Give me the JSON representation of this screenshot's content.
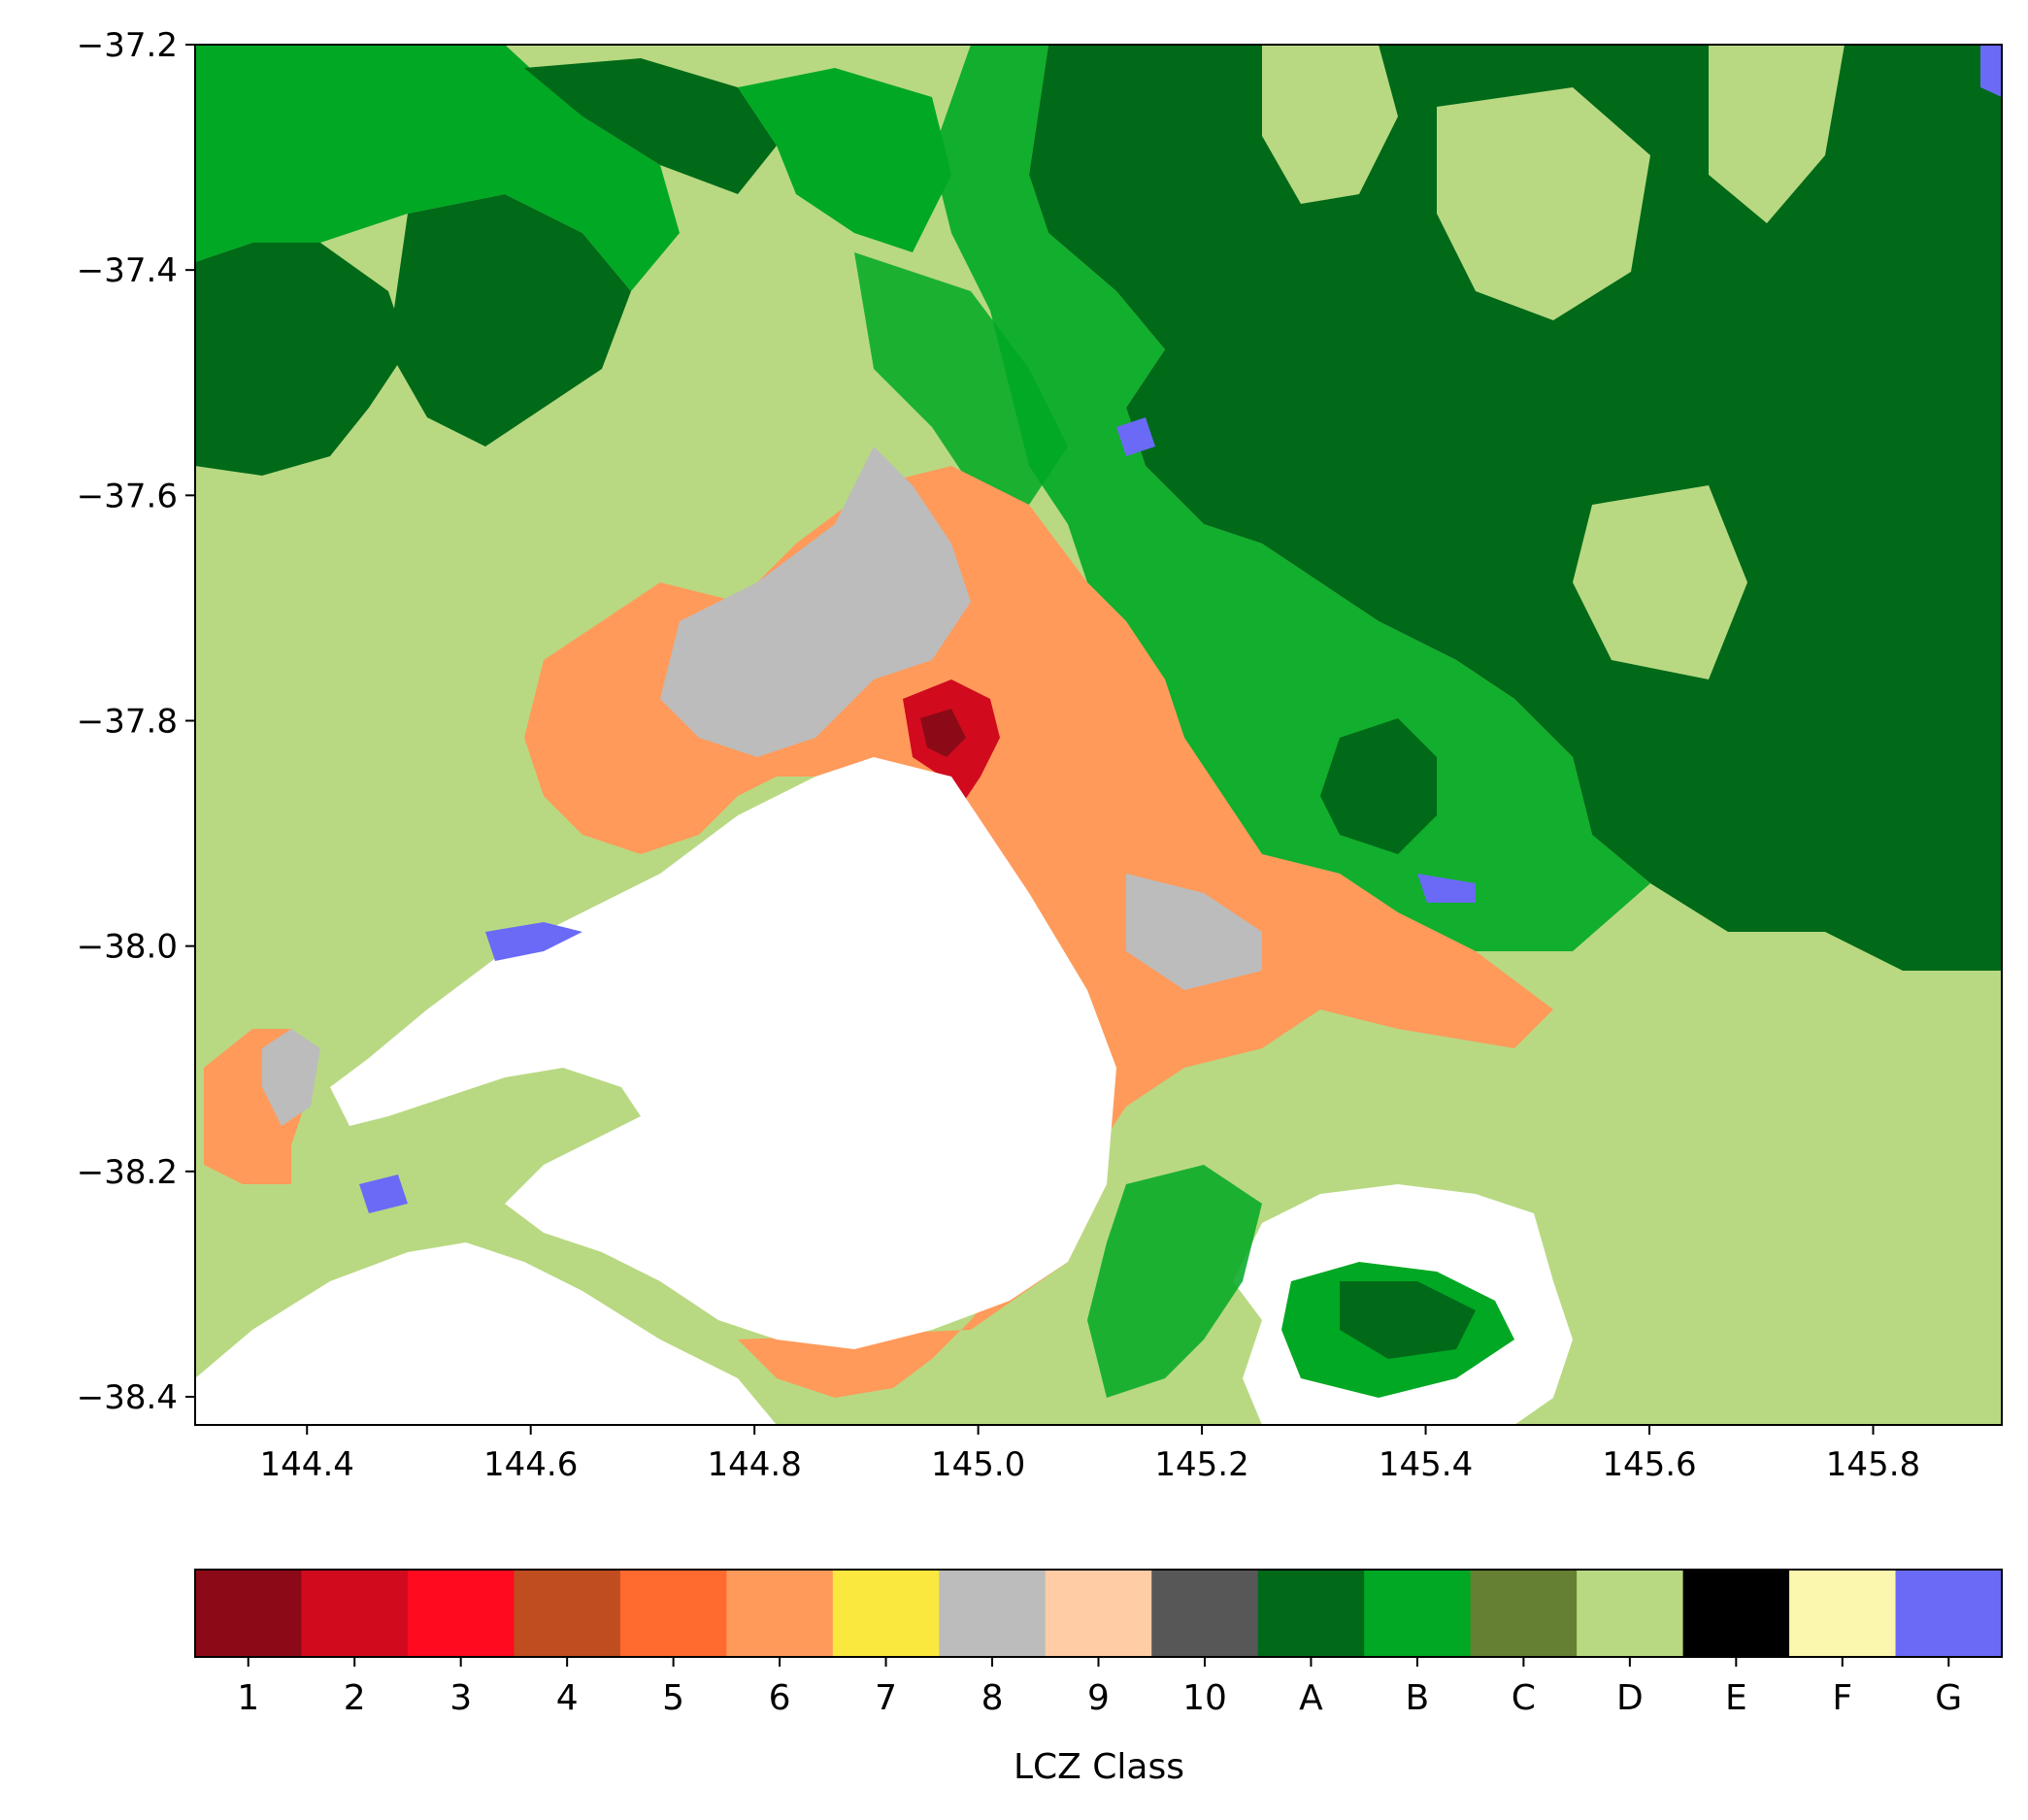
{
  "chart_data": {
    "type": "heatmap",
    "title": "",
    "xlabel": "",
    "ylabel": "",
    "xlim": [
      144.3,
      145.915
    ],
    "ylim": [
      -38.425,
      -37.2
    ],
    "x_ticks": [
      144.4,
      144.6,
      144.8,
      145.0,
      145.2,
      145.4,
      145.6,
      145.8
    ],
    "x_tick_labels": [
      "144.4",
      "144.6",
      "144.8",
      "145.0",
      "145.2",
      "145.4",
      "145.6",
      "145.8"
    ],
    "y_ticks": [
      -37.2,
      -37.4,
      -37.6,
      -37.8,
      -38.0,
      -38.2,
      -38.4
    ],
    "y_tick_labels": [
      "−37.2",
      "−37.4",
      "−37.6",
      "−37.8",
      "−38.0",
      "−38.2",
      "−38.4"
    ],
    "colorbar": {
      "label": "LCZ Class",
      "orientation": "horizontal",
      "classes": [
        "1",
        "2",
        "3",
        "4",
        "5",
        "6",
        "7",
        "8",
        "9",
        "10",
        "A",
        "B",
        "C",
        "D",
        "E",
        "F",
        "G"
      ],
      "colors": [
        "#8c0a17",
        "#d10a1e",
        "#ff0a1e",
        "#bf4d1f",
        "#ff6a2e",
        "#ff9a5a",
        "#fbe83f",
        "#bcbcbc",
        "#ffcca6",
        "#575757",
        "#006a18",
        "#00a823",
        "#658033",
        "#b8d982",
        "#000000",
        "#fbf7ae",
        "#6a6af7"
      ]
    },
    "regions": {
      "water": "#ffffff",
      "bay_shape": "Port Phillip Bay",
      "western_port_shape": "Western Port"
    }
  }
}
